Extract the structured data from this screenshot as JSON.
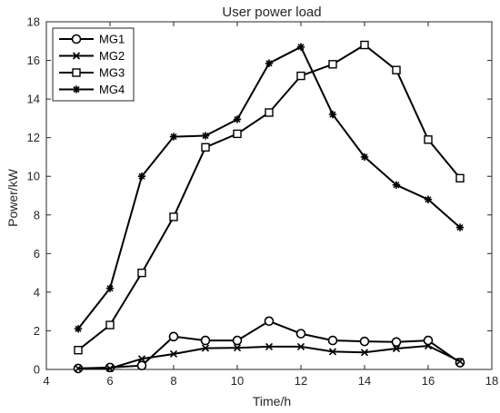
{
  "chart_data": {
    "type": "line",
    "title": "User power load",
    "xlabel": "Time/h",
    "ylabel": "Power/kW",
    "xlim": [
      4,
      18
    ],
    "ylim": [
      0,
      18
    ],
    "xticks": [
      4,
      6,
      8,
      10,
      12,
      14,
      16,
      18
    ],
    "yticks": [
      0,
      2,
      4,
      6,
      8,
      10,
      12,
      14,
      16,
      18
    ],
    "grid": false,
    "legend_position": "top-left",
    "x": [
      5,
      6,
      7,
      8,
      9,
      10,
      11,
      12,
      13,
      14,
      15,
      16,
      17
    ],
    "series": [
      {
        "name": "MG1",
        "marker": "circle",
        "values": [
          0.05,
          0.1,
          0.2,
          1.7,
          1.5,
          1.5,
          2.5,
          1.85,
          1.5,
          1.45,
          1.42,
          1.5,
          0.35
        ]
      },
      {
        "name": "MG2",
        "marker": "x",
        "values": [
          0.05,
          0.05,
          0.55,
          0.8,
          1.1,
          1.12,
          1.18,
          1.18,
          0.92,
          0.88,
          1.08,
          1.22,
          0.42
        ]
      },
      {
        "name": "MG3",
        "marker": "square",
        "values": [
          1.0,
          2.3,
          5.0,
          7.9,
          11.5,
          12.2,
          13.3,
          15.2,
          15.8,
          16.8,
          15.5,
          11.9,
          9.9
        ]
      },
      {
        "name": "MG4",
        "marker": "star",
        "values": [
          2.1,
          4.2,
          10.0,
          12.05,
          12.1,
          12.95,
          15.85,
          16.7,
          13.2,
          11.0,
          9.55,
          8.8,
          7.35
        ]
      }
    ]
  }
}
